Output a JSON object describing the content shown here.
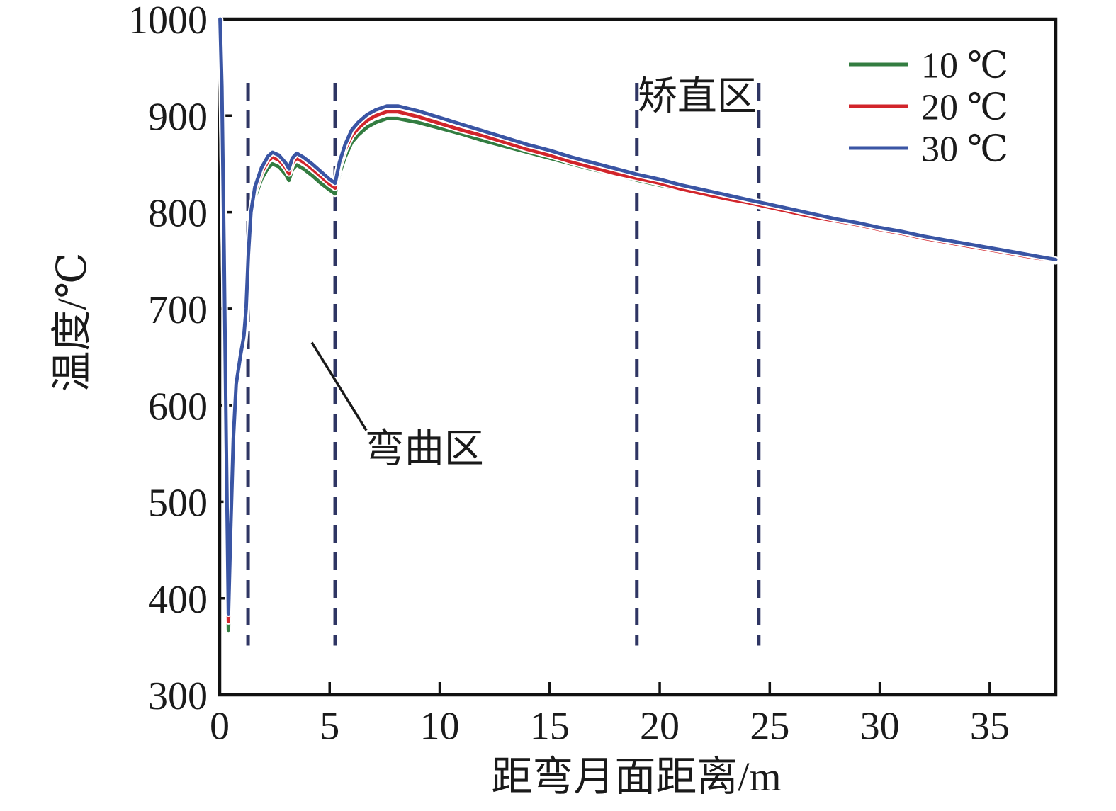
{
  "figure": {
    "background": "#ffffff",
    "axis_color": "#111111",
    "text_color": "#1a1a1a"
  },
  "chart_data": {
    "type": "line",
    "title": "",
    "xlabel": "距弯月面距离/m",
    "ylabel": "温度/℃",
    "xlim": [
      0,
      38
    ],
    "ylim": [
      300,
      1000
    ],
    "x_ticks": [
      0,
      5,
      10,
      15,
      20,
      25,
      30,
      35
    ],
    "y_ticks": [
      300,
      400,
      500,
      600,
      700,
      800,
      900,
      1000
    ],
    "grid": false,
    "legend_position": "top-right",
    "x": [
      0.02,
      0.1,
      0.2,
      0.3,
      0.4,
      0.5,
      0.62,
      0.75,
      0.95,
      1.1,
      1.2,
      1.3,
      1.42,
      1.6,
      1.9,
      2.2,
      2.4,
      2.7,
      3.0,
      3.15,
      3.3,
      3.5,
      3.8,
      4.2,
      4.6,
      5.0,
      5.25,
      5.45,
      5.7,
      6.0,
      6.3,
      6.7,
      7.1,
      7.6,
      8.1,
      9.0,
      10,
      11,
      12,
      13,
      14,
      15,
      16,
      17,
      18,
      19,
      20,
      21,
      22,
      23,
      24,
      25,
      26,
      27,
      28,
      29,
      30,
      31,
      32,
      33,
      34,
      35,
      36,
      37,
      38
    ],
    "series": [
      {
        "name": "10 ℃",
        "color": "#337d41",
        "values": [
          1000,
          920,
          745,
          540,
          367,
          455,
          550,
          608,
          640,
          660,
          688,
          743,
          789,
          815,
          834,
          846,
          850,
          847,
          839,
          833,
          844,
          849,
          845,
          838,
          830,
          823,
          819,
          840,
          857,
          872,
          880,
          888,
          893,
          897,
          897,
          893,
          887,
          881,
          874,
          868,
          862,
          856,
          850,
          844,
          839,
          833,
          828,
          823,
          818,
          813,
          809,
          804,
          800,
          795,
          790,
          786,
          781,
          777,
          773,
          769,
          765,
          761,
          757,
          753,
          749
        ]
      },
      {
        "name": "20 ℃",
        "color": "#d2252b",
        "values": [
          1000,
          926,
          754,
          552,
          376,
          463,
          558,
          616,
          646,
          666,
          694,
          749,
          795,
          821,
          841,
          853,
          857,
          854,
          846,
          840,
          851,
          856,
          852,
          845,
          837,
          829,
          825,
          847,
          865,
          879,
          887,
          895,
          900,
          904,
          904,
          899,
          892,
          885,
          879,
          872,
          865,
          859,
          852,
          846,
          840,
          835,
          830,
          824,
          819,
          814,
          810,
          805,
          800,
          795,
          791,
          787,
          782,
          778,
          773,
          769,
          765,
          761,
          757,
          753,
          750
        ]
      },
      {
        "name": "30 ℃",
        "color": "#3a55a4",
        "values": [
          1000,
          930,
          760,
          560,
          384,
          470,
          565,
          622,
          652,
          672,
          700,
          755,
          800,
          826,
          846,
          858,
          862,
          859,
          851,
          845,
          856,
          861,
          857,
          850,
          842,
          834,
          830,
          852,
          870,
          885,
          893,
          901,
          906,
          910,
          910,
          905,
          898,
          891,
          884,
          877,
          870,
          864,
          857,
          851,
          845,
          839,
          834,
          828,
          823,
          818,
          813,
          808,
          803,
          798,
          793,
          789,
          784,
          780,
          775,
          771,
          767,
          763,
          759,
          755,
          751
        ]
      }
    ],
    "region_boundaries": {
      "color": "#2e3563",
      "style": "dashed",
      "x_positions": [
        1.29,
        5.25,
        18.96,
        24.5
      ],
      "y_span": [
        351,
        934
      ]
    },
    "annotations": [
      {
        "id": "straightening-zone",
        "text": "矫直区",
        "x": 21.7,
        "y": 921
      },
      {
        "id": "bending-zone",
        "text": "弯曲区",
        "x": 9.3,
        "y": 556
      }
    ],
    "leader_line": {
      "x1": 4.19,
      "y1": 665,
      "x2": 6.67,
      "y2": 574
    }
  }
}
